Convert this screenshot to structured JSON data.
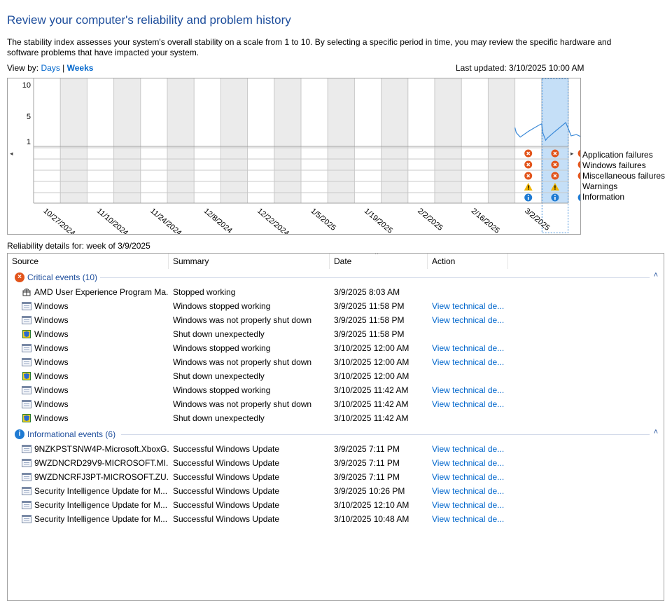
{
  "header": {
    "title": "Review your computer's reliability and problem history",
    "description": "The stability index assesses your system's overall stability on a scale from 1 to 10. By selecting a specific period in time, you may review the specific hardware and software problems that have impacted your system.",
    "view_by_label": "View by:",
    "days_label": "Days",
    "separator": "|",
    "weeks_label": "Weeks",
    "last_updated": "Last updated: 3/10/2025 10:00 AM"
  },
  "chart": {
    "y_ticks": [
      "10",
      "5",
      "1"
    ],
    "dates": [
      "10/27/2024",
      "11/10/2024",
      "11/24/2024",
      "12/8/2024",
      "12/22/2024",
      "1/5/2025",
      "1/19/2025",
      "2/2/2025",
      "2/16/2025",
      "3/2/2025"
    ],
    "selected_column": 20,
    "legend": [
      "Application failures",
      "Windows failures",
      "Miscellaneous failures",
      "Warnings",
      "Information"
    ],
    "nav_left": "◂",
    "nav_right": "▸",
    "colors": {
      "line": "#3c8ad8",
      "selected": "#c5dff7",
      "shaded": "#ebebeb",
      "critical": "#e2541b",
      "warning": "#f0b400",
      "info": "#1f7bd3"
    }
  },
  "chart_data": {
    "type": "line",
    "title": "",
    "ylabel": "",
    "ylim": [
      1,
      10
    ],
    "y_ticks": [
      10,
      5,
      1
    ],
    "x_ticks": [
      "10/27/2024",
      "11/10/2024",
      "11/24/2024",
      "12/8/2024",
      "12/22/2024",
      "1/5/2025",
      "1/19/2025",
      "2/2/2025",
      "2/16/2025",
      "3/2/2025"
    ],
    "columns": 20,
    "series": [
      {
        "values": [
          [
            18.0,
            3.2
          ],
          [
            18.05,
            2.4
          ],
          [
            18.2,
            1.7
          ],
          [
            18.5,
            2.6
          ],
          [
            18.9,
            3.6
          ],
          [
            19.0,
            3.8
          ],
          [
            19.05,
            2.3
          ],
          [
            19.15,
            1.2
          ],
          [
            19.2,
            1.5
          ],
          [
            19.5,
            2.6
          ],
          [
            19.9,
            4.0
          ],
          [
            20.0,
            3.0
          ],
          [
            20.1,
            1.9
          ],
          [
            20.3,
            2.1
          ],
          [
            20.5,
            1.7
          ],
          [
            20.7,
            2.0
          ],
          [
            21.0,
            1.4
          ]
        ]
      }
    ],
    "event_markers": {
      "columns": [
        18,
        19,
        20
      ],
      "application_failures": [
        "critical",
        "critical",
        "critical"
      ],
      "windows_failures": [
        "critical",
        "critical",
        "critical"
      ],
      "miscellaneous_failures": [
        "critical",
        "critical",
        "critical"
      ],
      "warnings": [
        "warning",
        "warning",
        ""
      ],
      "information": [
        "info",
        "info",
        "info"
      ]
    }
  },
  "details": {
    "label": "Reliability details for: week of 3/9/2025",
    "columns": [
      "Source",
      "Summary",
      "Date",
      "Action"
    ],
    "critical_group": "Critical events (10)",
    "info_group": "Informational events (6)",
    "collapse_glyph": "˄",
    "critical_icon": "×",
    "info_icon": "i",
    "critical_rows": [
      {
        "icon": "gift-icon",
        "source": "AMD User Experience Program Ma...",
        "summary": "Stopped working",
        "date": "3/9/2025 8:03 AM",
        "action": ""
      },
      {
        "icon": "window-icon",
        "source": "Windows",
        "summary": "Windows stopped working",
        "date": "3/9/2025 11:58 PM",
        "action": "View technical de..."
      },
      {
        "icon": "window-icon",
        "source": "Windows",
        "summary": "Windows was not properly shut down",
        "date": "3/9/2025 11:58 PM",
        "action": "View technical de..."
      },
      {
        "icon": "shield-icon",
        "source": "Windows",
        "summary": "Shut down unexpectedly",
        "date": "3/9/2025 11:58 PM",
        "action": ""
      },
      {
        "icon": "window-icon",
        "source": "Windows",
        "summary": "Windows stopped working",
        "date": "3/10/2025 12:00 AM",
        "action": "View technical de..."
      },
      {
        "icon": "window-icon",
        "source": "Windows",
        "summary": "Windows was not properly shut down",
        "date": "3/10/2025 12:00 AM",
        "action": "View technical de..."
      },
      {
        "icon": "shield-icon",
        "source": "Windows",
        "summary": "Shut down unexpectedly",
        "date": "3/10/2025 12:00 AM",
        "action": ""
      },
      {
        "icon": "window-icon",
        "source": "Windows",
        "summary": "Windows stopped working",
        "date": "3/10/2025 11:42 AM",
        "action": "View technical de..."
      },
      {
        "icon": "window-icon",
        "source": "Windows",
        "summary": "Windows was not properly shut down",
        "date": "3/10/2025 11:42 AM",
        "action": "View technical de..."
      },
      {
        "icon": "shield-icon",
        "source": "Windows",
        "summary": "Shut down unexpectedly",
        "date": "3/10/2025 11:42 AM",
        "action": ""
      }
    ],
    "info_rows": [
      {
        "icon": "window-icon",
        "source": "9NZKPSTSNW4P-Microsoft.XboxG...",
        "summary": "Successful Windows Update",
        "date": "3/9/2025 7:11 PM",
        "action": "View technical de..."
      },
      {
        "icon": "window-icon",
        "source": "9WZDNCRD29V9-MICROSOFT.MI...",
        "summary": "Successful Windows Update",
        "date": "3/9/2025 7:11 PM",
        "action": "View technical de..."
      },
      {
        "icon": "window-icon",
        "source": "9WZDNCRFJ3PT-MICROSOFT.ZU...",
        "summary": "Successful Windows Update",
        "date": "3/9/2025 7:11 PM",
        "action": "View technical de..."
      },
      {
        "icon": "window-icon",
        "source": "Security Intelligence Update for M...",
        "summary": "Successful Windows Update",
        "date": "3/9/2025 10:26 PM",
        "action": "View technical de..."
      },
      {
        "icon": "window-icon",
        "source": "Security Intelligence Update for M...",
        "summary": "Successful Windows Update",
        "date": "3/10/2025 12:10 AM",
        "action": "View technical de..."
      },
      {
        "icon": "window-icon",
        "source": "Security Intelligence Update for M...",
        "summary": "Successful Windows Update",
        "date": "3/10/2025 10:48 AM",
        "action": "View technical de..."
      }
    ]
  }
}
